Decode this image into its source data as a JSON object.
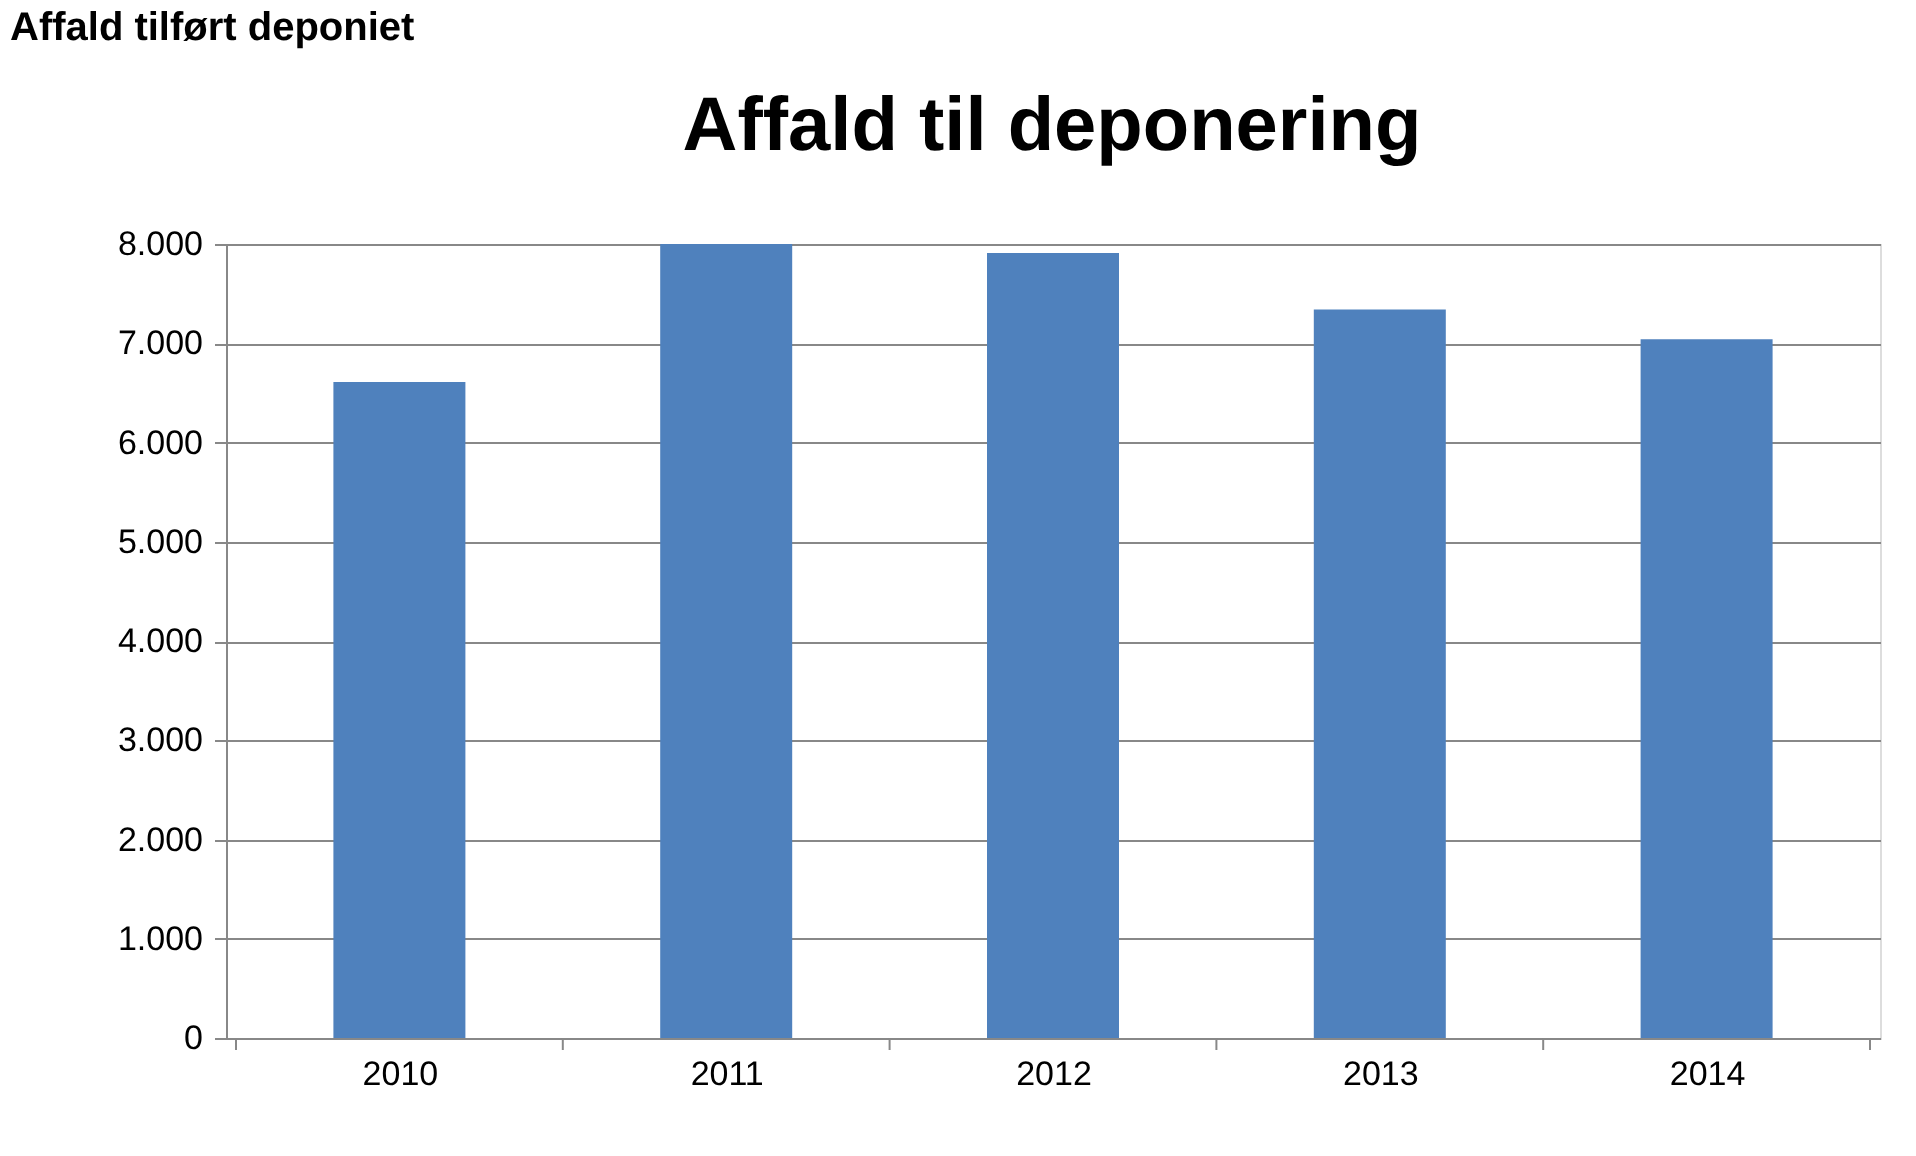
{
  "chart_data": {
    "type": "bar",
    "title": "Affald til deponering",
    "annotations": [
      "Affald tilført deponiet"
    ],
    "categories": [
      "2010",
      "2011",
      "2012",
      "2013",
      "2014"
    ],
    "values": [
      6610,
      8000,
      7910,
      7340,
      7040
    ],
    "color": "#4f81bd",
    "ylim": [
      0,
      8000
    ],
    "yticks": [
      0,
      {
        "value": 1000,
        "label": "1.000"
      },
      {
        "value": 2000,
        "label": "2.000"
      },
      {
        "value": 3000,
        "label": "3.000"
      },
      {
        "value": 4000,
        "label": "4.000"
      },
      {
        "value": 5000,
        "label": "5.000"
      },
      {
        "value": 6000,
        "label": "6.000"
      },
      {
        "value": 7000,
        "label": "7.000"
      },
      {
        "value": 8000,
        "label": "8.000"
      }
    ],
    "grid": "y"
  }
}
